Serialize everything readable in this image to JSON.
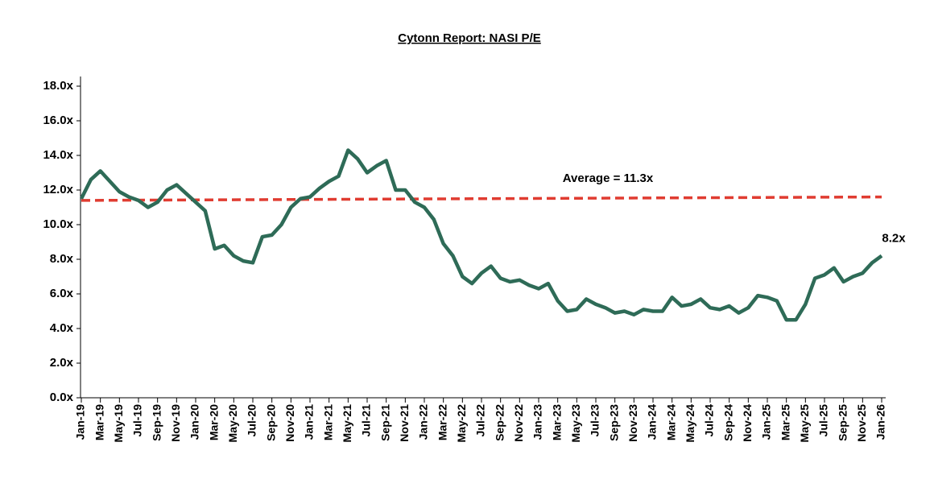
{
  "chart_data": {
    "type": "line",
    "title": "Cytonn Report: NASI P/E",
    "categories": [
      "Jan-19",
      null,
      "Mar-19",
      null,
      "May-19",
      null,
      "Jul-19",
      null,
      "Sep-19",
      null,
      "Nov-19",
      null,
      "Jan-20",
      null,
      "Mar-20",
      null,
      "May-20",
      null,
      "Jul-20",
      null,
      "Sep-20",
      null,
      "Nov-20",
      null,
      "Jan-21",
      null,
      "Mar-21",
      null,
      "May-21",
      null,
      "Jul-21",
      null,
      "Sep-21",
      null,
      "Nov-21",
      null,
      "Jan-22",
      null,
      "Mar-22",
      null,
      "May-22",
      null,
      "Jul-22",
      null,
      "Sep-22",
      null,
      "Nov-22",
      null,
      "Jan-23",
      null,
      "Mar-23",
      null,
      "May-23",
      null,
      "Jul-23",
      null,
      "Sep-23",
      null,
      "Nov-23",
      null,
      "Jan-24",
      null,
      "Mar-24",
      null,
      "May-24",
      null,
      "Jul-24",
      null,
      "Sep-24",
      null,
      "Nov-24",
      null,
      "Jan-25",
      null,
      "Mar-25",
      null,
      "May-25",
      null,
      "Jul-25",
      null,
      "Sep-25",
      null,
      "Nov-25",
      null,
      "Jan-26"
    ],
    "series": [
      {
        "name": "NASI P/E",
        "color": "#2e6b57",
        "values": [
          11.5,
          12.6,
          13.1,
          12.5,
          11.9,
          11.6,
          11.4,
          11.0,
          11.3,
          12.0,
          12.3,
          11.8,
          11.3,
          10.8,
          8.6,
          8.8,
          8.2,
          7.9,
          7.8,
          9.3,
          9.4,
          10.0,
          11.0,
          11.5,
          11.6,
          12.1,
          12.5,
          12.8,
          14.3,
          13.8,
          13.0,
          13.4,
          13.7,
          12.0,
          12.0,
          11.3,
          11.0,
          10.3,
          8.9,
          8.2,
          7.0,
          6.6,
          7.2,
          7.6,
          6.9,
          6.7,
          6.8,
          6.5,
          6.3,
          6.6,
          5.6,
          5.0,
          5.1,
          5.7,
          5.4,
          5.2,
          4.9,
          5.0,
          4.8,
          5.1,
          5.0,
          5.0,
          5.8,
          5.3,
          5.4,
          5.7,
          5.2,
          5.1,
          5.3,
          4.9,
          5.2,
          5.9,
          5.8,
          5.6,
          4.5,
          4.5,
          5.4,
          6.9,
          7.1,
          7.5,
          6.7,
          7.0,
          7.2,
          7.8,
          8.2
        ]
      }
    ],
    "average_line": {
      "label": "Average = 11.3x",
      "start": 11.4,
      "end": 11.6,
      "color": "#e03c31"
    },
    "end_label": "8.2x",
    "ylim": [
      0,
      18
    ],
    "yticks": [
      {
        "value": 0,
        "label": "0.0x"
      },
      {
        "value": 2,
        "label": "2.0x"
      },
      {
        "value": 4,
        "label": "4.0x"
      },
      {
        "value": 6,
        "label": "6.0x"
      },
      {
        "value": 8,
        "label": "8.0x"
      },
      {
        "value": 10,
        "label": "10.0x"
      },
      {
        "value": 12,
        "label": "12.0x"
      },
      {
        "value": 14,
        "label": "14.0x"
      },
      {
        "value": 16,
        "label": "16.0x"
      },
      {
        "value": 18,
        "label": "18.0x"
      }
    ],
    "grid": false
  }
}
